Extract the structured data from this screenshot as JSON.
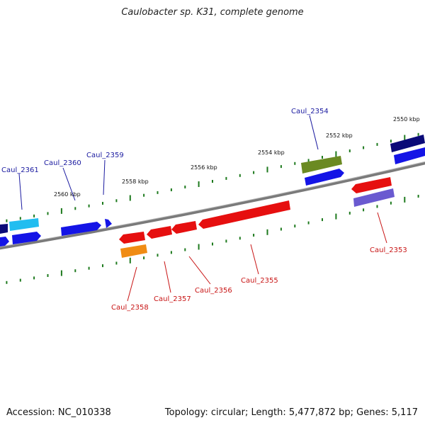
{
  "title": "Caulobacter sp. K31, complete genome",
  "footer": {
    "accession": "Accession: NC_010338",
    "summary": "Topology: circular; Length: 5,477,872 bp; Genes: 5,117"
  },
  "colors": {
    "backbone": "#7a7a7a",
    "ticks": "#1e7a1e",
    "forward_label": "#1a1aa0",
    "reverse_label": "#c81414",
    "blue": "#1414e6",
    "navy": "#0a0a78",
    "cyan": "#22bdf0",
    "olive": "#6b8a22",
    "red": "#e60f0f",
    "orange": "#f08c14",
    "slate": "#6a5ad0"
  },
  "scale_labels": [
    "2550 kbp",
    "2552 kbp",
    "2554 kbp",
    "2556 kbp",
    "2558 kbp",
    "2560 kbp"
  ],
  "gene_labels": {
    "forward": [
      "Caul_2361",
      "Caul_2360",
      "Caul_2359",
      "Caul_2354"
    ],
    "reverse": [
      "Caul_2358",
      "Caul_2357",
      "Caul_2356",
      "Caul_2355",
      "Caul_2353"
    ]
  }
}
